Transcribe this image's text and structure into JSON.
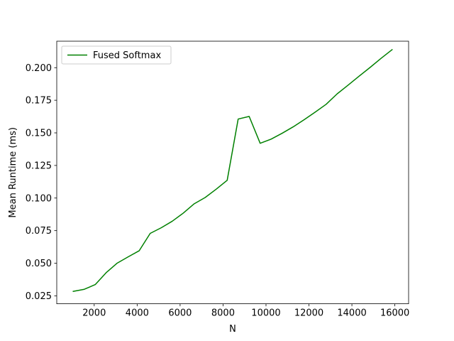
{
  "chart_data": {
    "type": "line",
    "title": "",
    "xlabel": "N",
    "ylabel": "Mean Runtime (ms)",
    "xlim": [
      256,
      16640
    ],
    "ylim": [
      0.0189,
      0.2203
    ],
    "x_ticks": [
      2000,
      4000,
      6000,
      8000,
      10000,
      12000,
      14000,
      16000
    ],
    "x_tick_labels": [
      "2000",
      "4000",
      "6000",
      "8000",
      "10000",
      "12000",
      "14000",
      "16000"
    ],
    "y_ticks": [
      0.025,
      0.05,
      0.075,
      0.1,
      0.125,
      0.15,
      0.175,
      0.2
    ],
    "y_tick_labels": [
      "0.025",
      "0.050",
      "0.075",
      "0.100",
      "0.125",
      "0.150",
      "0.175",
      "0.200"
    ],
    "grid": false,
    "legend": "upper-left",
    "series": [
      {
        "name": "Fused Softmax",
        "color": "#008000",
        "x": [
          1024,
          1536,
          2048,
          2560,
          3072,
          3584,
          4096,
          4608,
          5120,
          5632,
          6144,
          6656,
          7168,
          7680,
          8192,
          8704,
          9216,
          9728,
          10240,
          10752,
          11264,
          11776,
          12288,
          12800,
          13312,
          13824,
          14336,
          14848,
          15360,
          15872
        ],
        "y": [
          0.0284,
          0.03,
          0.0336,
          0.0428,
          0.0501,
          0.0549,
          0.0596,
          0.0729,
          0.0772,
          0.0822,
          0.0884,
          0.0956,
          0.1004,
          0.1068,
          0.1136,
          0.1606,
          0.1626,
          0.142,
          0.1452,
          0.1497,
          0.1546,
          0.1601,
          0.1659,
          0.1719,
          0.1799,
          0.1866,
          0.1935,
          0.2002,
          0.2072,
          0.2138
        ]
      }
    ]
  }
}
